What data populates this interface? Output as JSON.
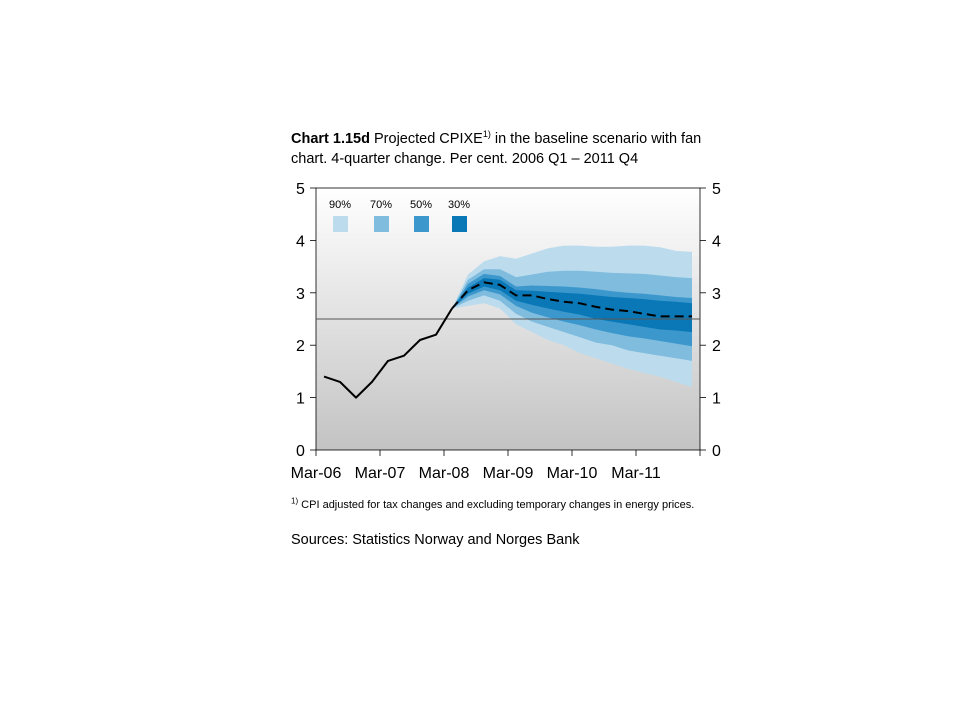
{
  "title": {
    "bold": "Chart 1.15d",
    "text_before": " Projected CPIXE",
    "sup": "1)",
    "text_after": " in the baseline scenario with fan chart. 4-quarter change. Per cent. 2006 Q1 – 2011 Q4"
  },
  "footnote": {
    "sup": "1)",
    "text": " CPI adjusted for tax changes and excluding temporary changes in energy prices."
  },
  "sources": "Sources: Statistics Norway and Norges Bank",
  "colors": {
    "band90": "#bcdcee",
    "band70": "#7fbcde",
    "band50": "#3c98cc",
    "band30": "#0a78b6",
    "bg_top": "#ffffff",
    "bg_bottom": "#c3c3c3"
  },
  "chart_data": {
    "type": "line",
    "x": [
      "2006 Q1",
      "2006 Q2",
      "2006 Q3",
      "2006 Q4",
      "2007 Q1",
      "2007 Q2",
      "2007 Q3",
      "2007 Q4",
      "2008 Q1",
      "2008 Q2",
      "2008 Q3",
      "2008 Q4",
      "2009 Q1",
      "2009 Q2",
      "2009 Q3",
      "2009 Q4",
      "2010 Q1",
      "2010 Q2",
      "2010 Q3",
      "2010 Q4",
      "2011 Q1",
      "2011 Q2",
      "2011 Q3",
      "2011 Q4"
    ],
    "tick_labels": [
      "Mar-06",
      "Mar-07",
      "Mar-08",
      "Mar-09",
      "Mar-10",
      "Mar-11"
    ],
    "ylim": [
      0,
      5
    ],
    "yticks": [
      0,
      1,
      2,
      3,
      4,
      5
    ],
    "reference_line": 2.5,
    "legend": [
      "90%",
      "70%",
      "50%",
      "30%"
    ],
    "legend_position": "top-left",
    "series": [
      {
        "style": "solid",
        "values": [
          1.4,
          1.3,
          1.0,
          1.3,
          1.7,
          1.8,
          2.1,
          2.2,
          2.7,
          null,
          null,
          null,
          null,
          null,
          null,
          null,
          null,
          null,
          null,
          null,
          null,
          null,
          null,
          null
        ]
      },
      {
        "style": "dashed",
        "values": [
          null,
          null,
          null,
          null,
          null,
          null,
          null,
          null,
          2.7,
          3.05,
          3.2,
          3.15,
          2.95,
          2.95,
          2.88,
          2.83,
          2.8,
          2.73,
          2.68,
          2.65,
          2.6,
          2.55,
          2.55,
          2.55
        ]
      }
    ],
    "bands": [
      {
        "level": "90%",
        "lower": [
          null,
          null,
          null,
          null,
          null,
          null,
          null,
          null,
          2.7,
          2.75,
          2.8,
          2.7,
          2.4,
          2.25,
          2.1,
          2.0,
          1.85,
          1.75,
          1.65,
          1.55,
          1.47,
          1.4,
          1.3,
          1.2
        ],
        "upper": [
          null,
          null,
          null,
          null,
          null,
          null,
          null,
          null,
          2.7,
          3.35,
          3.6,
          3.7,
          3.65,
          3.75,
          3.85,
          3.9,
          3.9,
          3.88,
          3.88,
          3.9,
          3.9,
          3.87,
          3.8,
          3.78
        ]
      },
      {
        "level": "70%",
        "lower": [
          null,
          null,
          null,
          null,
          null,
          null,
          null,
          null,
          2.7,
          2.85,
          2.95,
          2.85,
          2.6,
          2.45,
          2.35,
          2.25,
          2.15,
          2.05,
          2.0,
          1.9,
          1.85,
          1.8,
          1.75,
          1.7
        ],
        "upper": [
          null,
          null,
          null,
          null,
          null,
          null,
          null,
          null,
          2.7,
          3.25,
          3.45,
          3.45,
          3.3,
          3.35,
          3.4,
          3.42,
          3.42,
          3.4,
          3.38,
          3.37,
          3.36,
          3.33,
          3.3,
          3.28
        ],
        "_": null
      },
      {
        "level": "50%",
        "lower": [
          null,
          null,
          null,
          null,
          null,
          null,
          null,
          null,
          2.7,
          2.93,
          3.05,
          2.97,
          2.75,
          2.62,
          2.53,
          2.45,
          2.38,
          2.3,
          2.23,
          2.17,
          2.13,
          2.08,
          2.03,
          1.98
        ],
        "upper": [
          null,
          null,
          null,
          null,
          null,
          null,
          null,
          null,
          2.7,
          3.17,
          3.36,
          3.32,
          3.12,
          3.14,
          3.13,
          3.12,
          3.1,
          3.07,
          3.03,
          3.0,
          2.98,
          2.95,
          2.92,
          2.9
        ]
      },
      {
        "level": "30%",
        "lower": [
          null,
          null,
          null,
          null,
          null,
          null,
          null,
          null,
          2.7,
          2.98,
          3.12,
          3.05,
          2.85,
          2.77,
          2.7,
          2.64,
          2.58,
          2.5,
          2.45,
          2.4,
          2.35,
          2.3,
          2.28,
          2.25
        ],
        "upper": [
          null,
          null,
          null,
          null,
          null,
          null,
          null,
          null,
          2.7,
          3.1,
          3.28,
          3.25,
          3.05,
          3.04,
          3.02,
          3.0,
          2.98,
          2.95,
          2.92,
          2.9,
          2.88,
          2.85,
          2.83,
          2.8
        ]
      }
    ]
  }
}
